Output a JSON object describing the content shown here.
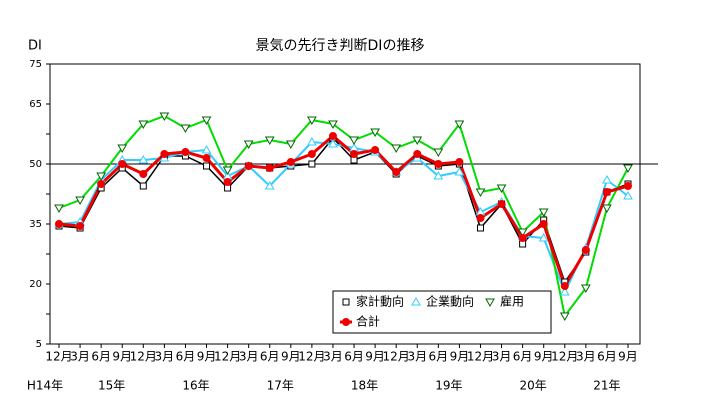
{
  "chart_data": {
    "type": "line",
    "title": "景気の先行き判断DIの推移",
    "y_label": "DI",
    "categories": [
      "12月",
      "3月",
      "6月",
      "9月",
      "12月",
      "3月",
      "6月",
      "9月",
      "12月",
      "3月",
      "6月",
      "9月",
      "12月",
      "3月",
      "6月",
      "9月",
      "12月",
      "3月",
      "6月",
      "9月",
      "12月",
      "3月",
      "6月",
      "9月",
      "12月",
      "3月",
      "6月",
      "9月"
    ],
    "x_groups": [
      "H14年",
      "15年",
      null,
      null,
      null,
      "16年",
      null,
      null,
      null,
      "17年",
      null,
      null,
      null,
      "18年",
      null,
      null,
      null,
      "19年",
      null,
      null,
      null,
      "20年",
      null,
      null,
      null,
      "21年",
      null,
      null
    ],
    "ylim": [
      5,
      75
    ],
    "yticks": [
      5,
      20,
      35,
      50,
      65,
      75
    ],
    "yticks_minor": [
      12.5,
      27.5,
      42.5,
      57.5
    ],
    "reference_line": 50,
    "series": [
      {
        "name": "家計動向",
        "color": "#000000",
        "marker": "square",
        "values": [
          34.5,
          34,
          44,
          49,
          44.5,
          52,
          52,
          49.5,
          44,
          49.5,
          49,
          49.5,
          50,
          56.5,
          51,
          53,
          47.5,
          52,
          49.5,
          50,
          34,
          40,
          30,
          36,
          20.5,
          28,
          43,
          45
        ]
      },
      {
        "name": "企業動向",
        "color": "#33ccff",
        "marker": "triangle-up",
        "values": [
          35,
          35.5,
          46,
          51,
          51,
          51.5,
          53,
          53.5,
          47,
          49.5,
          44.5,
          50,
          55.5,
          55,
          54,
          53,
          48,
          51.5,
          47,
          48,
          38,
          40.5,
          32,
          31.5,
          18,
          29,
          46,
          42
        ]
      },
      {
        "name": "雇用",
        "color": "#00dd00",
        "marker": "triangle-down",
        "values": [
          39,
          41,
          47,
          54,
          60,
          62,
          59,
          61,
          48.5,
          55,
          56,
          55,
          61,
          60,
          56,
          58,
          54,
          56,
          53,
          60,
          43,
          44,
          33,
          38,
          12,
          19,
          39,
          49
        ]
      },
      {
        "name": "合計",
        "color": "#ee0000",
        "marker": "circle",
        "values": [
          35,
          34.5,
          45,
          50,
          47.5,
          52.5,
          53,
          51.5,
          45.5,
          49.5,
          49,
          50.5,
          52.5,
          57,
          52.5,
          53.5,
          48,
          52.5,
          50,
          50.5,
          36.5,
          40,
          31.5,
          35,
          19.5,
          28.5,
          43,
          44.5
        ]
      }
    ]
  }
}
